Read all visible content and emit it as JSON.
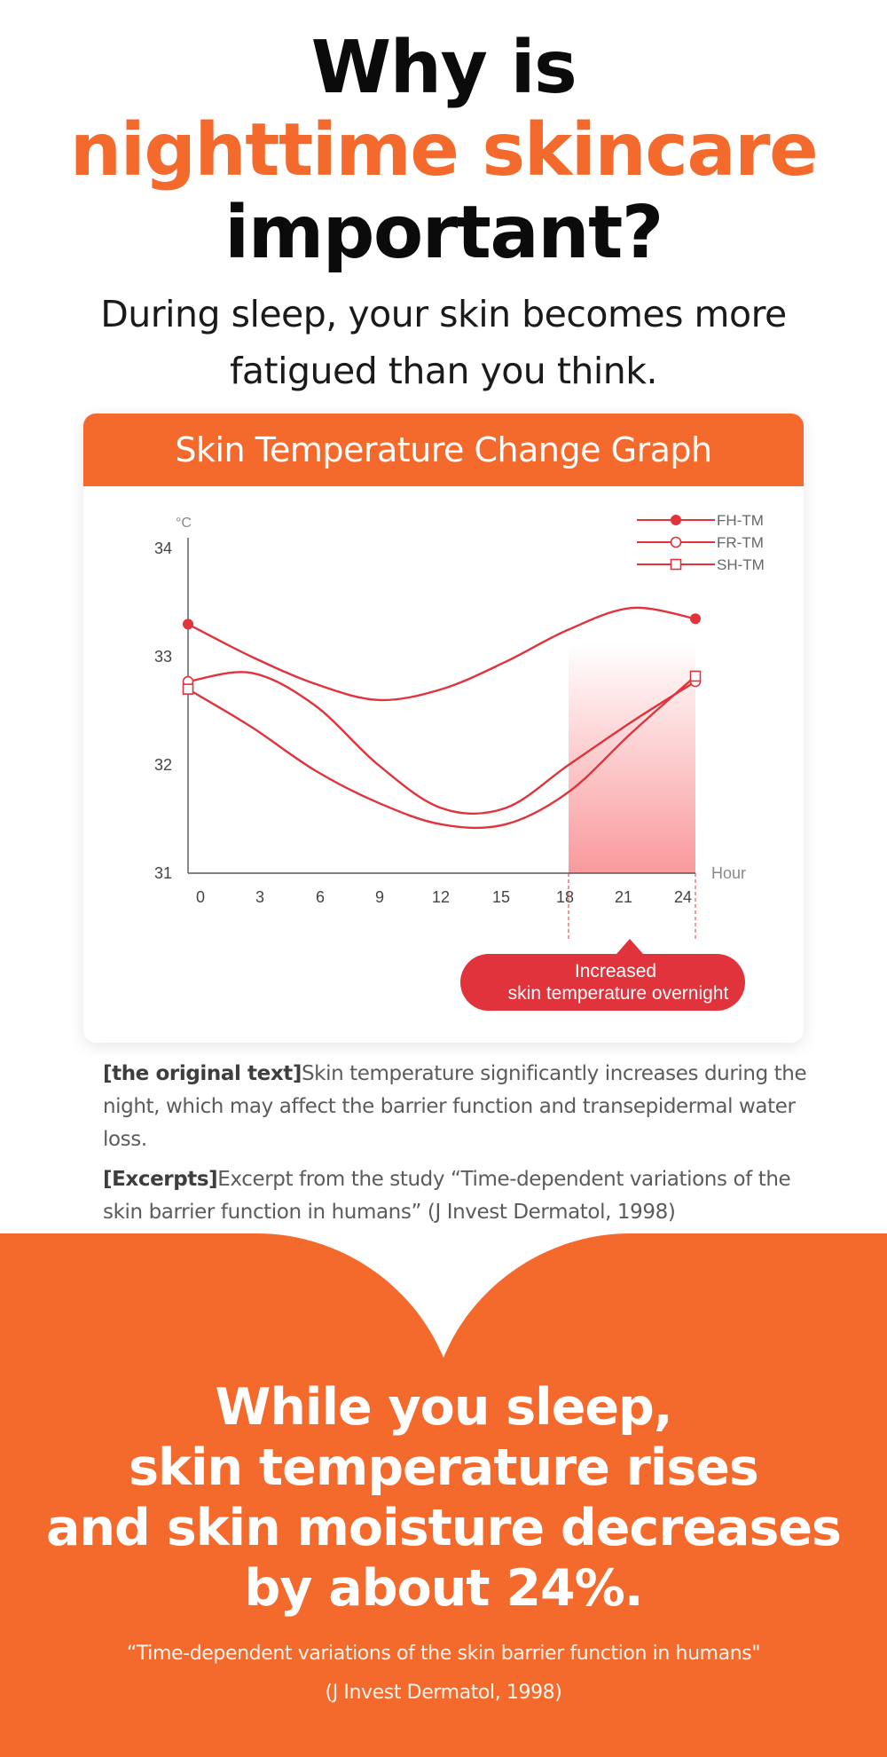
{
  "headline": {
    "line1": "Why is",
    "line2": "nighttime skincare",
    "line3": "important?"
  },
  "subhead": {
    "line1": "During sleep, your skin becomes more",
    "line2": "fatigued than you think."
  },
  "card": {
    "title": "Skin Temperature Change Graph"
  },
  "chart_data": {
    "type": "line",
    "title": "Skin Temperature Change Graph",
    "ylabel": "°C",
    "xlabel": "Hour",
    "x_ticks": [
      "0",
      "3",
      "6",
      "9",
      "12",
      "15",
      "18",
      "21",
      "24"
    ],
    "y_ticks": [
      "31",
      "32",
      "33",
      "34"
    ],
    "xlim": [
      0,
      24
    ],
    "ylim": [
      31,
      34
    ],
    "grid": false,
    "legend_position": "top-right",
    "series": [
      {
        "name": "FH-TM",
        "marker": "filled-circle",
        "x": [
          0,
          3,
          6,
          9,
          12,
          15,
          18,
          21,
          24
        ],
        "y": [
          33.3,
          33.0,
          32.75,
          32.6,
          32.7,
          32.95,
          33.25,
          33.45,
          33.35
        ]
      },
      {
        "name": "FR-TM",
        "marker": "open-circle",
        "x": [
          0,
          3,
          6,
          9,
          12,
          15,
          18,
          21,
          24
        ],
        "y": [
          32.77,
          32.85,
          32.55,
          32.0,
          31.6,
          31.6,
          32.0,
          32.4,
          32.77
        ]
      },
      {
        "name": "SH-TM",
        "marker": "open-square",
        "x": [
          0,
          3,
          6,
          9,
          12,
          15,
          18,
          21,
          24
        ],
        "y": [
          32.7,
          32.35,
          31.95,
          31.65,
          31.45,
          31.45,
          31.75,
          32.3,
          32.82
        ]
      }
    ],
    "highlight_range": [
      18,
      24
    ],
    "annotation": {
      "line1": "Increased",
      "line2": "skin temperature overnight"
    },
    "colors": {
      "line": "#e0333b",
      "highlight": "#f9999c",
      "axis": "#555555",
      "tick_text": "#444444",
      "unit_text": "#888888",
      "callout_bg": "#e0333b"
    }
  },
  "notes": {
    "original_label": "[the original text]",
    "original_text": "Skin temperature significantly increases during the night, which may affect the barrier function and transepidermal water loss.",
    "excerpt_label": "[Excerpts]",
    "excerpt_text": "Excerpt from the study “Time-dependent variations of the skin barrier function in humans” (J Invest Dermatol, 1998)"
  },
  "bottom": {
    "line1": "While you sleep,",
    "line2": "skin temperature rises",
    "line3": "and skin moisture decreases",
    "line4": "by about 24%.",
    "citation1": "“Time-dependent variations of the skin barrier function in humans\"",
    "citation2": "(J Invest Dermatol, 1998)"
  },
  "colors": {
    "accent": "#f46a2c",
    "text": "#0b0b0b"
  }
}
